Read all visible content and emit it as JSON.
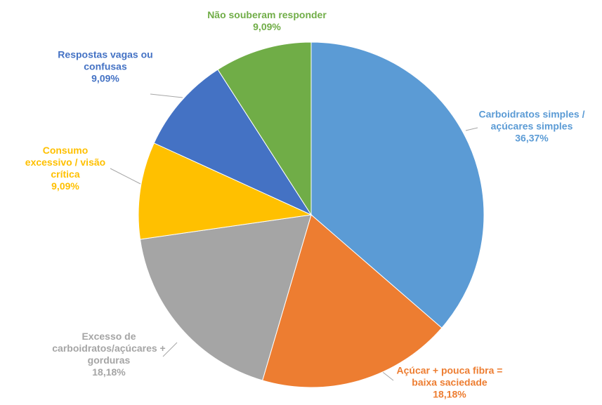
{
  "chart_data": {
    "type": "pie",
    "categories": [
      "Carboidratos simples / açúcares simples",
      "Açúcar + pouca fibra = baixa saciedade",
      "Excesso de carboidratos/açúcares + gorduras",
      "Consumo excessivo / visão crítica",
      "Respostas vagas ou confusas",
      "Não souberam responder"
    ],
    "values": [
      36.37,
      18.18,
      18.18,
      9.09,
      9.09,
      9.09
    ],
    "value_labels": [
      "36,37%",
      "18,18%",
      "18,18%",
      "9,09%",
      "9,09%",
      "9,09%"
    ],
    "colors": [
      "#5b9bd5",
      "#ed7d31",
      "#a5a5a5",
      "#ffc000",
      "#4472c4",
      "#70ad47"
    ]
  }
}
